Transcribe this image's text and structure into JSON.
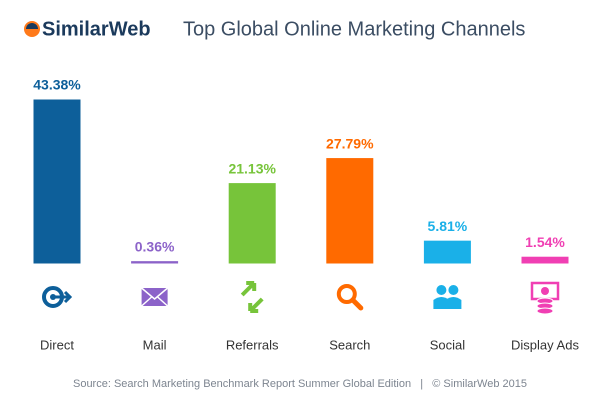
{
  "brand": "SimilarWeb",
  "chart_data": {
    "type": "bar",
    "title": "Top Global Online Marketing Channels",
    "categories": [
      "Direct",
      "Mail",
      "Referrals",
      "Search",
      "Social",
      "Display Ads"
    ],
    "values": [
      43.38,
      0.36,
      21.13,
      27.79,
      5.81,
      1.54
    ],
    "value_labels": [
      "43.38%",
      "0.36%",
      "21.13%",
      "27.79%",
      "5.81%",
      "1.54%"
    ],
    "colors": [
      "#0d5f9a",
      "#8c63c9",
      "#77c43a",
      "#ff6a00",
      "#1ab0e8",
      "#f03fb3"
    ],
    "source": "Source: Search Marketing Benchmark Report Summer Global Edition   |   © SimilarWeb 2015"
  }
}
